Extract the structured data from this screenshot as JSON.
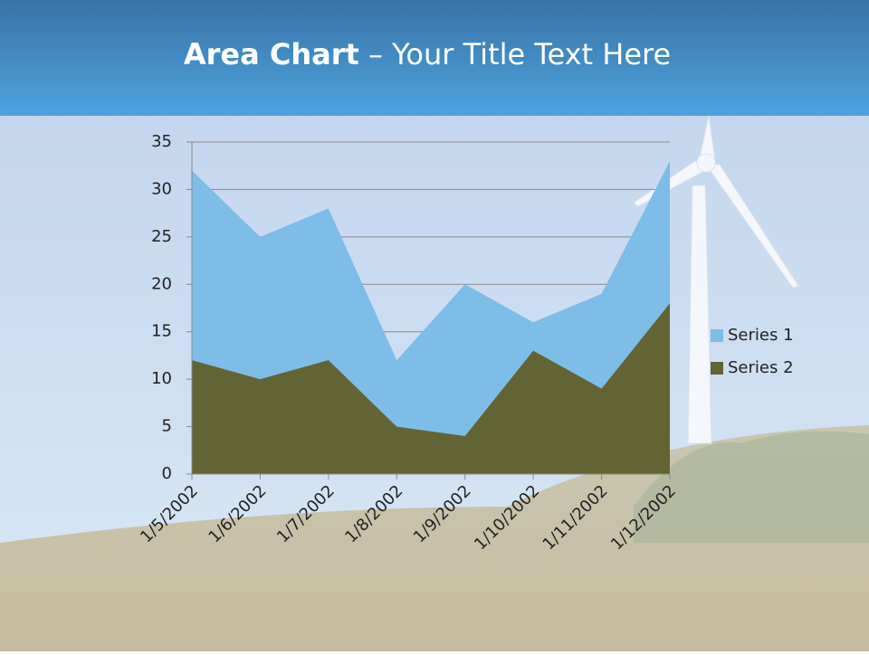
{
  "chart_data": {
    "type": "area",
    "title_parts": [
      "Area Chart",
      "– Your Title Text Here"
    ],
    "categories": [
      "1/5/2002",
      "1/6/2002",
      "1/7/2002",
      "1/8/2002",
      "1/9/2002",
      "1/10/2002",
      "1/11/2002",
      "1/12/2002"
    ],
    "series": [
      {
        "name": "Series 1",
        "color": "#7dbde8",
        "values": [
          32,
          25,
          28,
          12,
          20,
          16,
          19,
          33
        ]
      },
      {
        "name": "Series 2",
        "color": "#636433",
        "values": [
          12,
          10,
          12,
          5,
          4,
          13,
          9,
          18
        ]
      }
    ],
    "ylim": [
      0,
      35
    ],
    "yticks": [
      0,
      5,
      10,
      15,
      20,
      25,
      30,
      35
    ],
    "grid": true,
    "legend": "right"
  }
}
